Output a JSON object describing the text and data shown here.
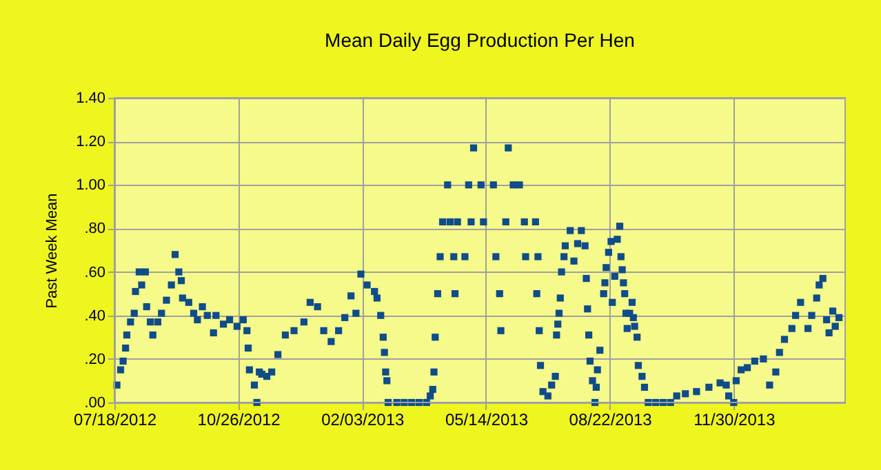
{
  "chart_data": {
    "type": "scatter",
    "title": "Mean Daily Egg Production Per Hen",
    "ylabel": "Past Week Mean",
    "x": [
      "2012-07-20",
      "2012-07-23",
      "2012-07-25",
      "2012-07-27",
      "2012-07-28",
      "2012-07-31",
      "2012-08-03",
      "2012-08-04",
      "2012-08-07",
      "2012-08-09",
      "2012-08-12",
      "2012-08-13",
      "2012-08-16",
      "2012-08-18",
      "2012-08-22",
      "2012-08-25",
      "2012-08-29",
      "2012-09-02",
      "2012-09-05",
      "2012-09-08",
      "2012-09-10",
      "2012-09-11",
      "2012-09-16",
      "2012-09-20",
      "2012-09-23",
      "2012-09-27",
      "2012-10-01",
      "2012-10-06",
      "2012-10-08",
      "2012-10-14",
      "2012-10-19",
      "2012-10-25",
      "2012-10-30",
      "2012-11-02",
      "2012-11-03",
      "2012-11-04",
      "2012-11-08",
      "2012-11-10",
      "2012-11-12",
      "2012-11-14",
      "2012-11-18",
      "2012-11-22",
      "2012-11-27",
      "2012-12-03",
      "2012-12-10",
      "2012-12-18",
      "2012-12-23",
      "2012-12-29",
      "2013-01-03",
      "2013-01-09",
      "2013-01-15",
      "2013-01-20",
      "2013-01-25",
      "2013-01-29",
      "2013-02-02",
      "2013-02-07",
      "2013-02-13",
      "2013-02-15",
      "2013-02-18",
      "2013-02-20",
      "2013-02-21",
      "2013-02-22",
      "2013-02-23",
      "2013-02-24",
      "2013-03-03",
      "2013-03-09",
      "2013-03-15",
      "2013-03-21",
      "2013-03-27",
      "2013-03-30",
      "2013-04-01",
      "2013-04-02",
      "2013-04-03",
      "2013-04-05",
      "2013-04-07",
      "2013-04-09",
      "2013-04-13",
      "2013-04-15",
      "2013-04-18",
      "2013-04-19",
      "2013-04-21",
      "2013-04-27",
      "2013-04-30",
      "2013-05-02",
      "2013-05-04",
      "2013-05-10",
      "2013-05-12",
      "2013-05-20",
      "2013-05-22",
      "2013-05-25",
      "2013-05-26",
      "2013-05-30",
      "2013-06-01",
      "2013-06-05",
      "2013-06-10",
      "2013-06-14",
      "2013-06-15",
      "2013-06-23",
      "2013-06-24",
      "2013-06-25",
      "2013-06-26",
      "2013-06-27",
      "2013-06-29",
      "2013-07-03",
      "2013-07-06",
      "2013-07-09",
      "2013-07-10",
      "2013-07-11",
      "2013-07-12",
      "2013-07-13",
      "2013-07-14",
      "2013-07-16",
      "2013-07-17",
      "2013-07-21",
      "2013-07-24",
      "2013-07-27",
      "2013-07-30",
      "2013-08-02",
      "2013-08-03",
      "2013-08-04",
      "2013-08-05",
      "2013-08-06",
      "2013-08-08",
      "2013-08-10",
      "2013-08-11",
      "2013-08-12",
      "2013-08-14",
      "2013-08-17",
      "2013-08-18",
      "2013-08-19",
      "2013-08-21",
      "2013-08-23",
      "2013-08-24",
      "2013-08-26",
      "2013-08-28",
      "2013-08-30",
      "2013-08-31",
      "2013-09-01",
      "2013-09-02",
      "2013-09-03",
      "2013-09-04",
      "2013-09-05",
      "2013-09-07",
      "2013-09-09",
      "2013-09-10",
      "2013-09-11",
      "2013-09-13",
      "2013-09-14",
      "2013-09-17",
      "2013-09-19",
      "2013-09-22",
      "2013-09-28",
      "2013-10-04",
      "2013-10-10",
      "2013-10-15",
      "2013-10-22",
      "2013-10-31",
      "2013-11-10",
      "2013-11-19",
      "2013-11-24",
      "2013-11-26",
      "2013-11-30",
      "2013-12-02",
      "2013-12-06",
      "2013-12-11",
      "2013-12-17",
      "2013-12-24",
      "2013-12-29",
      "2014-01-03",
      "2014-01-06",
      "2014-01-10",
      "2014-01-16",
      "2014-01-19",
      "2014-01-23",
      "2014-01-29",
      "2014-02-01",
      "2014-02-05",
      "2014-02-07",
      "2014-02-10",
      "2014-02-13",
      "2014-02-15",
      "2014-02-18",
      "2014-02-20",
      "2014-02-23"
    ],
    "series": [
      {
        "color": "#0f4c8a",
        "values": [
          0.08,
          0.15,
          0.19,
          0.25,
          0.31,
          0.37,
          0.41,
          0.51,
          0.6,
          0.54,
          0.6,
          0.44,
          0.37,
          0.31,
          0.37,
          0.41,
          0.47,
          0.54,
          0.68,
          0.6,
          0.56,
          0.48,
          0.46,
          0.41,
          0.38,
          0.44,
          0.4,
          0.32,
          0.4,
          0.36,
          0.38,
          0.35,
          0.38,
          0.33,
          0.25,
          0.15,
          0.08,
          0.0,
          0.14,
          0.13,
          0.12,
          0.14,
          0.22,
          0.31,
          0.33,
          0.37,
          0.46,
          0.44,
          0.33,
          0.28,
          0.33,
          0.39,
          0.49,
          0.41,
          0.59,
          0.54,
          0.51,
          0.48,
          0.4,
          0.3,
          0.23,
          0.14,
          0.1,
          0.0,
          0.0,
          0.0,
          0.0,
          0.0,
          0.0,
          0.03,
          0.06,
          0.14,
          0.3,
          0.5,
          0.67,
          0.83,
          1.0,
          0.83,
          0.67,
          0.5,
          0.83,
          0.67,
          1.0,
          0.83,
          1.17,
          1.0,
          0.83,
          1.0,
          0.67,
          0.5,
          0.33,
          0.83,
          1.17,
          1.0,
          1.0,
          0.83,
          0.67,
          0.83,
          0.5,
          0.67,
          0.33,
          0.17,
          0.05,
          0.03,
          0.08,
          0.12,
          0.31,
          0.36,
          0.41,
          0.48,
          0.6,
          0.67,
          0.72,
          0.79,
          0.65,
          0.73,
          0.79,
          0.72,
          0.57,
          0.43,
          0.31,
          0.19,
          0.1,
          0.0,
          0.07,
          0.15,
          0.24,
          0.5,
          0.55,
          0.62,
          0.69,
          0.74,
          0.46,
          0.58,
          0.75,
          0.81,
          0.67,
          0.61,
          0.55,
          0.5,
          0.41,
          0.34,
          0.41,
          0.46,
          0.39,
          0.35,
          0.3,
          0.17,
          0.12,
          0.07,
          0.0,
          0.0,
          0.0,
          0.0,
          0.03,
          0.04,
          0.05,
          0.07,
          0.09,
          0.08,
          0.03,
          0.0,
          0.1,
          0.15,
          0.16,
          0.19,
          0.2,
          0.08,
          0.14,
          0.23,
          0.29,
          0.34,
          0.4,
          0.46,
          0.34,
          0.4,
          0.48,
          0.54,
          0.57,
          0.38,
          0.32,
          0.42,
          0.35,
          0.39
        ]
      }
    ],
    "xlim": [
      "2012-07-18",
      "2014-02-28"
    ],
    "xticks": [
      {
        "value": "2012-07-18",
        "label": "07/18/2012"
      },
      {
        "value": "2012-10-26",
        "label": "10/26/2012"
      },
      {
        "value": "2013-02-03",
        "label": "02/03/2013"
      },
      {
        "value": "2013-05-14",
        "label": "05/14/2013"
      },
      {
        "value": "2013-08-22",
        "label": "08/22/2013"
      },
      {
        "value": "2013-11-30",
        "label": "11/30/2013"
      }
    ],
    "ylim": [
      0,
      1.4
    ],
    "yticks": [
      {
        "value": 0,
        "label": ".00"
      },
      {
        "value": 0.2,
        "label": ".20"
      },
      {
        "value": 0.4,
        "label": ".40"
      },
      {
        "value": 0.6,
        "label": ".60"
      },
      {
        "value": 0.8,
        "label": ".80"
      },
      {
        "value": 1,
        "label": "1.00"
      },
      {
        "value": 1.2,
        "label": "1.20"
      },
      {
        "value": 1.4,
        "label": "1.40"
      }
    ],
    "grid": true,
    "marker": "square"
  }
}
